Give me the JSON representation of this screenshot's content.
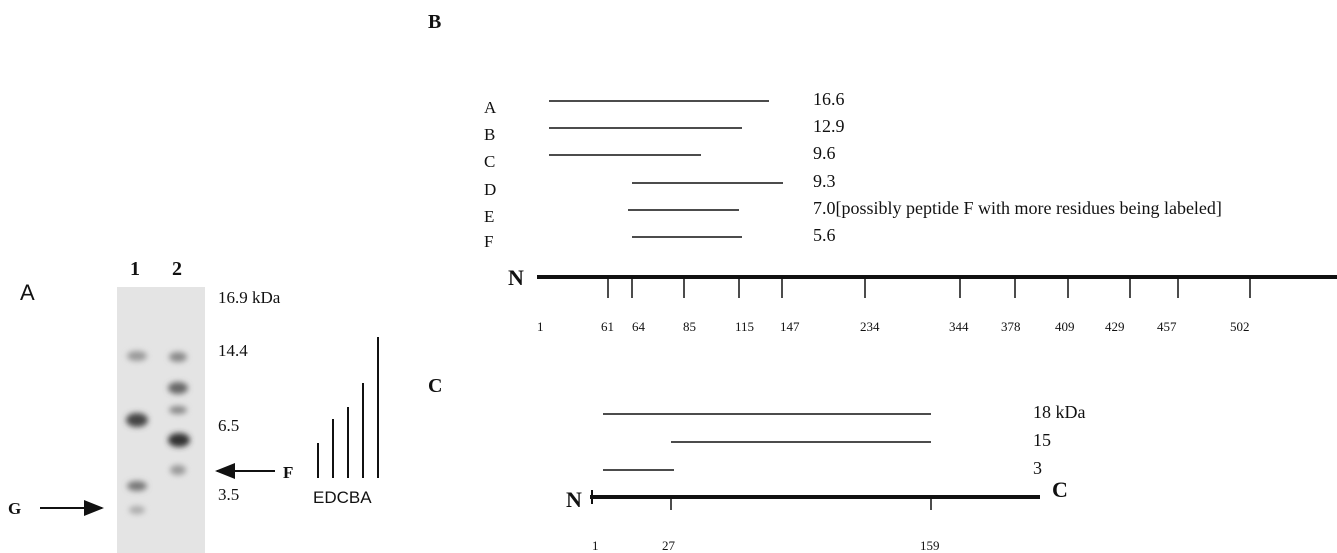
{
  "panel_a": {
    "label": "A",
    "lanes": [
      "1",
      "2"
    ],
    "markers": [
      "16.9 kDa",
      "14.4",
      "6.5",
      "3.5"
    ],
    "arrows": [
      "G",
      "F"
    ],
    "ladder": "EDCBA"
  },
  "panel_b": {
    "label": "B",
    "fragments": [
      {
        "name": "A",
        "size": "16.6"
      },
      {
        "name": "B",
        "size": "12.9"
      },
      {
        "name": "C",
        "size": "9.6"
      },
      {
        "name": "D",
        "size": "9.3"
      },
      {
        "name": "E",
        "size": "7.0[possibly peptide F with more residues being labeled]"
      },
      {
        "name": "F",
        "size": "5.6"
      }
    ],
    "terminus": "N",
    "ticks": [
      "1",
      "61",
      "64",
      "85",
      "115",
      "147",
      "234",
      "344",
      "378",
      "409",
      "429",
      "457",
      "502"
    ]
  },
  "panel_c": {
    "label": "C",
    "fragments": [
      "18 kDa",
      "15",
      "3"
    ],
    "n_terminus": "N",
    "c_terminus": "C",
    "ticks": [
      "1",
      "27",
      "159"
    ]
  }
}
